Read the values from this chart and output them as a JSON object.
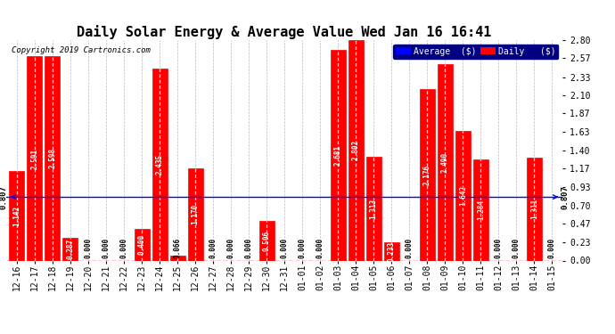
{
  "title": "Daily Solar Energy & Average Value Wed Jan 16 16:41",
  "copyright": "Copyright 2019 Cartronics.com",
  "categories": [
    "12-16",
    "12-17",
    "12-18",
    "12-19",
    "12-20",
    "12-21",
    "12-22",
    "12-23",
    "12-24",
    "12-25",
    "12-26",
    "12-27",
    "12-28",
    "12-29",
    "12-30",
    "12-31",
    "01-01",
    "01-02",
    "01-03",
    "01-04",
    "01-05",
    "01-06",
    "01-07",
    "01-08",
    "01-09",
    "01-10",
    "01-11",
    "01-12",
    "01-13",
    "01-14",
    "01-15"
  ],
  "values": [
    1.142,
    2.591,
    2.598,
    0.287,
    0.0,
    0.0,
    0.0,
    0.4,
    2.435,
    0.066,
    1.17,
    0.0,
    0.0,
    0.0,
    0.506,
    0.0,
    0.0,
    0.0,
    2.681,
    2.802,
    1.313,
    0.233,
    0.0,
    2.176,
    2.49,
    1.642,
    1.284,
    0.0,
    0.0,
    1.311,
    0.0
  ],
  "average": 0.807,
  "bar_color": "#FF0000",
  "average_color": "#0000FF",
  "background_color": "#FFFFFF",
  "grid_color": "#BBBBBB",
  "title_fontsize": 11,
  "ylim": [
    0.0,
    2.8
  ],
  "ylabel_right_ticks": [
    0.0,
    0.23,
    0.47,
    0.7,
    0.93,
    1.17,
    1.4,
    1.63,
    1.87,
    2.1,
    2.33,
    2.57,
    2.8
  ],
  "avg_label": "0.807",
  "legend_avg_label": "Average  ($)",
  "legend_daily_label": "Daily   ($)",
  "bar_value_fontsize": 5.5,
  "axis_tick_fontsize": 7
}
